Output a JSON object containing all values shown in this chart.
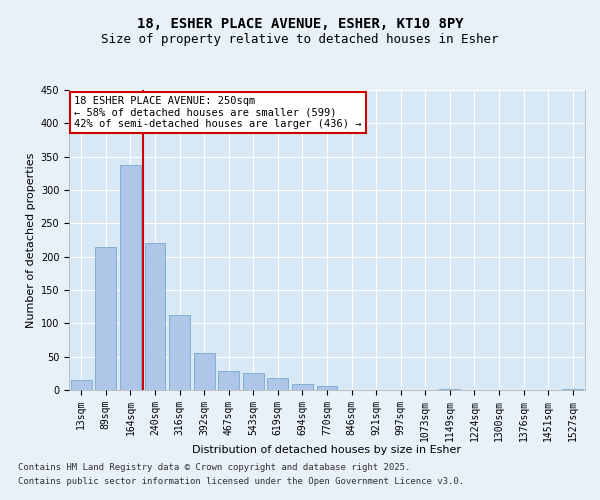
{
  "title_line1": "18, ESHER PLACE AVENUE, ESHER, KT10 8PY",
  "title_line2": "Size of property relative to detached houses in Esher",
  "xlabel": "Distribution of detached houses by size in Esher",
  "ylabel": "Number of detached properties",
  "categories": [
    "13sqm",
    "89sqm",
    "164sqm",
    "240sqm",
    "316sqm",
    "392sqm",
    "467sqm",
    "543sqm",
    "619sqm",
    "694sqm",
    "770sqm",
    "846sqm",
    "921sqm",
    "997sqm",
    "1073sqm",
    "1149sqm",
    "1224sqm",
    "1300sqm",
    "1376sqm",
    "1451sqm",
    "1527sqm"
  ],
  "values": [
    15,
    215,
    338,
    220,
    113,
    55,
    28,
    26,
    18,
    9,
    6,
    0,
    0,
    0,
    0,
    1,
    0,
    0,
    0,
    0,
    2
  ],
  "bar_color": "#aec6e8",
  "bar_edge_color": "#6a9fc8",
  "vline_position": 3.0,
  "vline_color": "#cc0000",
  "annotation_text": "18 ESHER PLACE AVENUE: 250sqm\n← 58% of detached houses are smaller (599)\n42% of semi-detached houses are larger (436) →",
  "annotation_box_color": "#ffffff",
  "annotation_box_edge_color": "#cc0000",
  "background_color": "#e8f0f8",
  "plot_bg_color": "#d8e8f4",
  "grid_color": "#ffffff",
  "ylim": [
    0,
    450
  ],
  "yticks": [
    0,
    50,
    100,
    150,
    200,
    250,
    300,
    350,
    400,
    450
  ],
  "footer_line1": "Contains HM Land Registry data © Crown copyright and database right 2025.",
  "footer_line2": "Contains public sector information licensed under the Open Government Licence v3.0.",
  "title_fontsize": 10,
  "subtitle_fontsize": 9,
  "axis_label_fontsize": 8,
  "tick_fontsize": 7,
  "annotation_fontsize": 7.5,
  "footer_fontsize": 6.5
}
